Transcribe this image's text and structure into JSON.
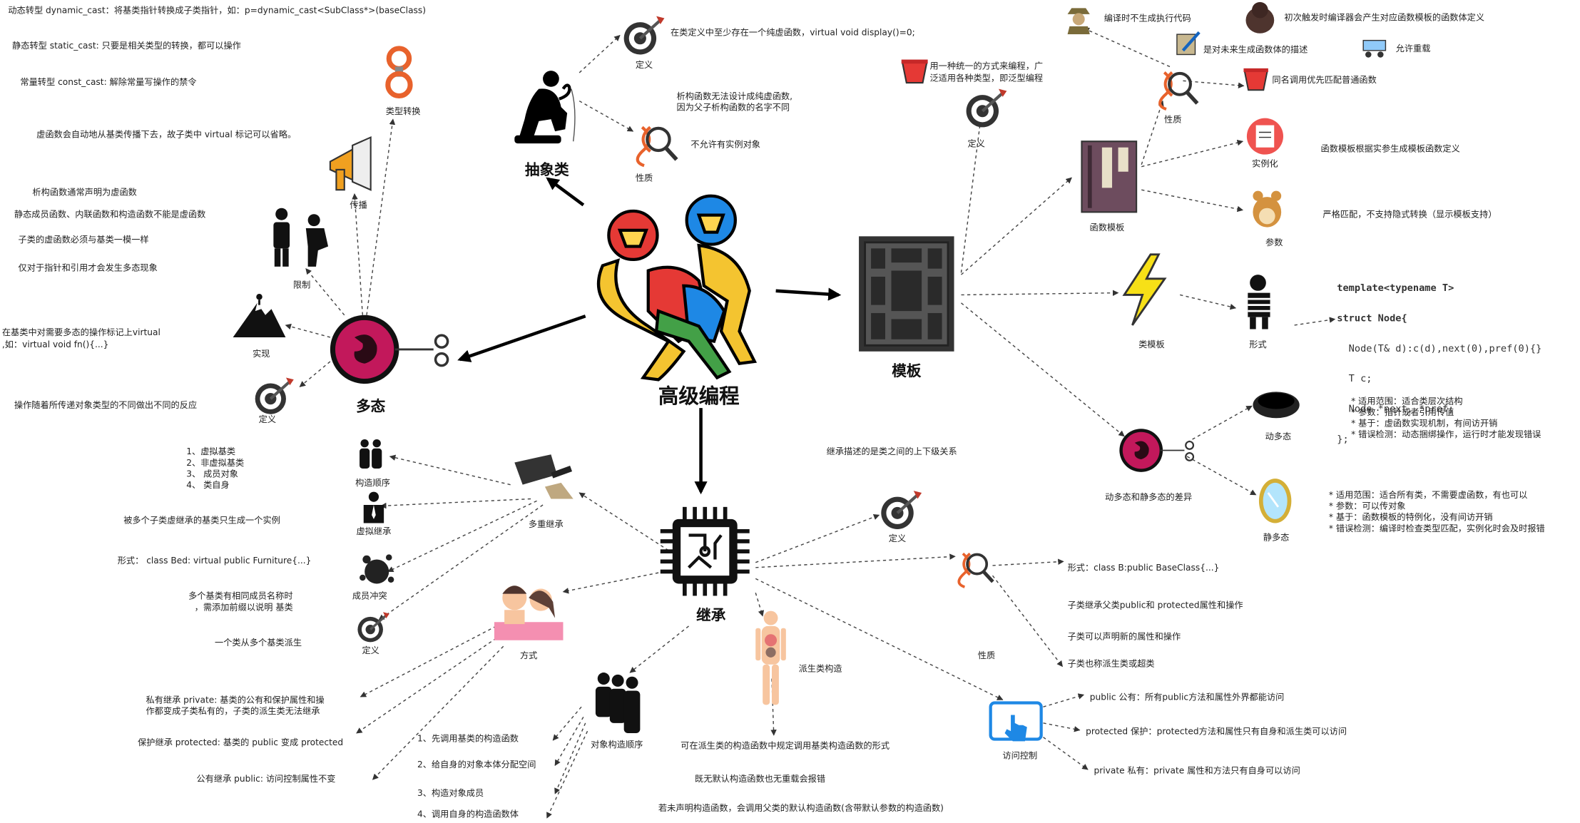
{
  "colors": {
    "edge": "#444444",
    "target_red": "#c0392b",
    "fetus_pink": "#c2185b",
    "dna_orange": "#e8622c",
    "blue_accent": "#1e88e5"
  },
  "center": {
    "label": "高级编程"
  },
  "abstract_class": {
    "title": "抽象类",
    "definition_label": "定义",
    "definition_text": "在类定义中至少存在一个纯虚函数，virtual void display()=0;",
    "nature_label": "性质",
    "nature_texts": [
      "析构函数无法设计成纯虚函数,",
      "因为父子析构函数的名字不同",
      "不允许有实例对象"
    ]
  },
  "polymorphism": {
    "title": "多态",
    "type_conversion_label": "类型转换",
    "conversions": [
      "动态转型 dynamic_cast：将基类指针转换成子类指针，如：p=dynamic_cast<SubClass*>(baseClass)",
      "静态转型 static_cast: 只要是相关类型的转换，都可以操作",
      "常量转型 const_cast: 解除常量写操作的禁令"
    ],
    "propagation_label": "传播",
    "propagation_text": "虚函数会自动地从基类传播下去，故子类中 virtual 标记可以省略。",
    "restriction_label": "限制",
    "restrictions": [
      "析构函数通常声明为虚函数",
      "静态成员函数、内联函数和构造函数不能是虚函数",
      "子类的虚函数必须与基类一模一样",
      "仅对于指针和引用才会发生多态现象"
    ],
    "implementation_label": "实现",
    "implementation_texts": [
      "在基类中对需要多态的操作标记上virtual",
      ",如：virtual void fn(){...}"
    ],
    "definition_label": "定义",
    "definition_text": "操作随着所传递对象类型的不同做出不同的反应"
  },
  "template": {
    "title": "模板",
    "definition_label": "定义",
    "definition_texts": [
      "用一种统一的方式来编程，广",
      "泛适用各种类型，即泛型编程"
    ],
    "function_template_label": "函数模板",
    "nature_label": "性质",
    "nature_items": [
      "编译时不生成执行代码",
      "初次触发时编译器会产生对应函数模板的函数体定义",
      "是对未来生成函数体的描述",
      "允许重载",
      "同名调用优先匹配普通函数"
    ],
    "instantiation_label": "实例化",
    "instantiation_text": "函数模板根据实参生成模板函数定义",
    "params_label": "参数",
    "params_text": "严格匹配，不支持隐式转换（显示模板支持）",
    "class_template_label": "类模板",
    "form_label": "形式",
    "code_lines": [
      "template<typename T>",
      "struct Node{",
      "  Node(T& d):c(d),next(0),pref(0){}",
      "  T c;",
      "  Node *next, *pref;",
      "};"
    ],
    "poly_diff_label": "动多态和静多态的差异",
    "dynamic_label": "动多态",
    "dynamic_items": [
      "* 适用范围：适合类层次结构",
      "* 参数：指针或者引用传值",
      "* 基于：虚函数实现机制，有间访开销",
      "* 错误检测：动态捆绑操作，运行时才能发现错误"
    ],
    "static_label": "静多态",
    "static_items": [
      "* 适用范围：适合所有类，不需要虚函数，有也可以",
      "* 参数：可以传对象",
      "* 基于：函数模板的特例化，没有间访开销",
      "* 错误检测：编译时检查类型匹配，实例化时会及时报错"
    ]
  },
  "inheritance": {
    "title": "继承",
    "definition_label": "定义",
    "definition_text": "继承描述的是类之间的上下级关系",
    "nature_label": "性质",
    "nature_items": [
      "形式：class B:public BaseClass{...}",
      "子类继承父类public和 protected属性和操作",
      "子类可以声明新的属性和操作",
      "子类也称派生类或超类"
    ],
    "access_label": "访问控制",
    "access_items": [
      "public 公有：所有public方法和属性外界都能访问",
      "protected 保护：protected方法和属性只有自身和派生类可以访问",
      "private 私有：private 属性和方法只有自身可以访问"
    ],
    "derived_ctor_label": "派生类构造",
    "derived_ctor_items": [
      "可在派生类的构造函数中规定调用基类构造函数的形式",
      "既无默认构造函数也无重载会报错",
      "若未声明构造函数，会调用父类的默认构造函数(含带默认参数的构造函数)"
    ],
    "order_label": "对象构造顺序",
    "order_items": [
      "1、先调用基类的构造函数",
      "2、给自身的对象本体分配空间",
      "3、构造对象成员",
      "4、调用自身的构造函数体"
    ],
    "mode_label": "方式",
    "mode_items": [
      "私有继承 private: 基类的公有和保护属性和操",
      "作都变成子类私有的，子类的派生类无法继承",
      "保护继承 protected: 基类的 public 变成 protected",
      "公有继承 public:  访问控制属性不变"
    ],
    "multi_label": "多重继承",
    "ctor_order_label": "构造顺序",
    "ctor_order_items": [
      "1、虚拟基类",
      "2、非虚拟基类",
      "3、 成员对象",
      "4、 类自身"
    ],
    "virtual_inherit_label": "虚拟继承",
    "virtual_inherit_text": "被多个子类虚继承的基类只生成一个实例",
    "conflict_label": "成员冲突",
    "conflict_texts": [
      "形式：  class Bed: virtual public Furniture{...}",
      "多个基类有相同成员名称时",
      "，需添加前缀以说明 基类"
    ],
    "multi_def_label": "定义",
    "multi_def_text": "一个类从多个基类派生"
  }
}
